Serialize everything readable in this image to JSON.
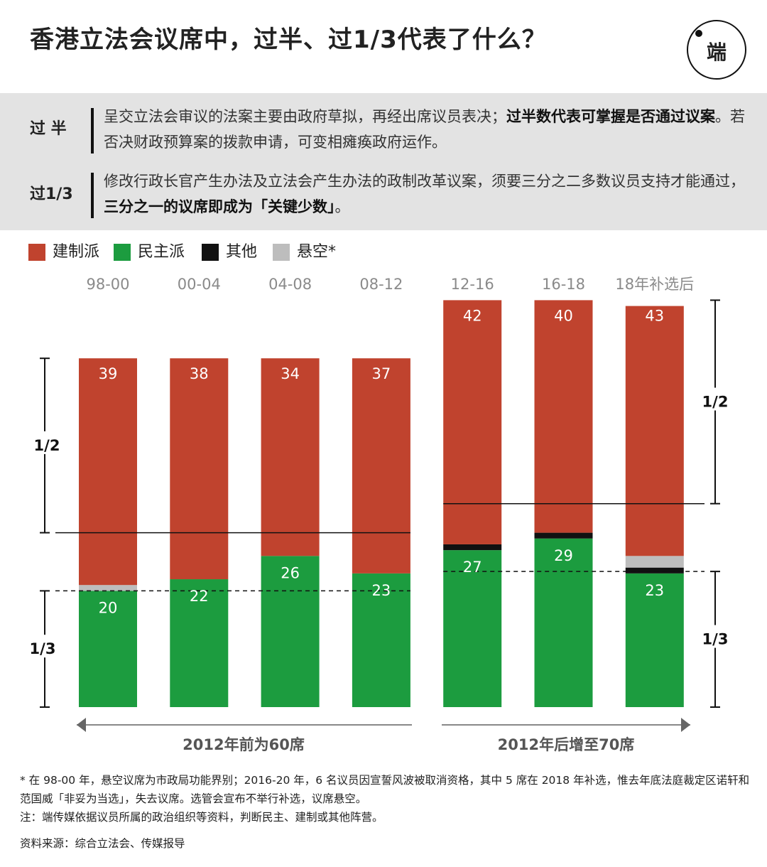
{
  "title": "香港立法会议席中，过半、过1/3代表了什么？",
  "logo_text": "端",
  "info": [
    {
      "label": "过 半",
      "text": "呈交立法会审议的法案主要由政府草拟，再经出席议员表决；",
      "bold": "过半数代表可掌握是否通过议案",
      "tail": "。若否决财政预算案的拨款申请，可变相瘫痪政府运作。"
    },
    {
      "label": "过1/3",
      "text": "修改行政长官产生办法及立法会产生办法的政制改革议案，须要三分之二多数议员支持才能通过，",
      "bold": "三分之一的议席即成为「关键少数」",
      "tail": "。"
    }
  ],
  "legend": [
    {
      "label": "建制派",
      "color": "#c0432e"
    },
    {
      "label": "民主派",
      "color": "#1c9c3f"
    },
    {
      "label": "其他",
      "color": "#111111"
    },
    {
      "label": "悬空*",
      "color": "#bdbdbd"
    }
  ],
  "chart_data": {
    "type": "bar",
    "stacked": true,
    "categories": [
      "98-00",
      "00-04",
      "04-08",
      "08-12",
      "12-16",
      "16-18",
      "18年补选后"
    ],
    "series": [
      {
        "name": "民主派",
        "color": "#1c9c3f",
        "values": [
          20,
          22,
          26,
          23,
          27,
          29,
          23
        ]
      },
      {
        "name": "其他",
        "color": "#111111",
        "values": [
          0,
          0,
          0,
          0,
          1,
          1,
          1
        ]
      },
      {
        "name": "悬空*",
        "color": "#bdbdbd",
        "values": [
          1,
          0,
          0,
          0,
          0,
          0,
          2
        ]
      },
      {
        "name": "建制派",
        "color": "#c0432e",
        "values": [
          39,
          38,
          34,
          37,
          42,
          40,
          43
        ]
      }
    ],
    "totals": [
      60,
      60,
      60,
      60,
      70,
      70,
      70
    ],
    "threshold_labels": {
      "half": "1/2",
      "third": "1/3"
    },
    "group_labels": [
      {
        "label": "2012年前为60席",
        "from": 0,
        "to": 3
      },
      {
        "label": "2012年后增至70席",
        "from": 4,
        "to": 6
      }
    ]
  },
  "footnotes": {
    "note1": "* 在 98-00 年，悬空议席为市政局功能界别；2016-20 年，6 名议员因宣誓风波被取消资格，其中 5 席在 2018 年补选，惟去年底法庭裁定区诺轩和范国威「非妥为当选」，失去议席。选管会宣布不举行补选，议席悬空。",
    "note2": "注：端传媒依据议员所属的政治组织等资料，判断民主、建制或其他阵营。",
    "source": "资料来源：综合立法会、传媒报导"
  }
}
